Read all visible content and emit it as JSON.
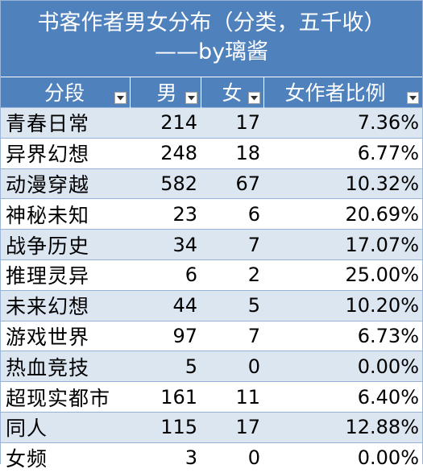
{
  "title": {
    "line1": "书客作者男女分布（分类，五千收）",
    "line2": "——by璃酱"
  },
  "columns": [
    {
      "label": "分段"
    },
    {
      "label": "男"
    },
    {
      "label": "女"
    },
    {
      "label": "女作者比例"
    }
  ],
  "rows": [
    {
      "category": "青春日常",
      "male": "214",
      "female": "17",
      "ratio": "7.36%"
    },
    {
      "category": "异界幻想",
      "male": "248",
      "female": "18",
      "ratio": "6.77%"
    },
    {
      "category": "动漫穿越",
      "male": "582",
      "female": "67",
      "ratio": "10.32%"
    },
    {
      "category": "神秘未知",
      "male": "23",
      "female": "6",
      "ratio": "20.69%"
    },
    {
      "category": "战争历史",
      "male": "34",
      "female": "7",
      "ratio": "17.07%"
    },
    {
      "category": "推理灵异",
      "male": "6",
      "female": "2",
      "ratio": "25.00%"
    },
    {
      "category": "未来幻想",
      "male": "44",
      "female": "5",
      "ratio": "10.20%"
    },
    {
      "category": "游戏世界",
      "male": "97",
      "female": "7",
      "ratio": "6.73%"
    },
    {
      "category": "热血竞技",
      "male": "5",
      "female": "0",
      "ratio": "0.00%"
    },
    {
      "category": "超现实都市",
      "male": "161",
      "female": "11",
      "ratio": "6.40%"
    },
    {
      "category": "同人",
      "male": "115",
      "female": "17",
      "ratio": "12.88%"
    },
    {
      "category": "女频",
      "male": "3",
      "female": "0",
      "ratio": "0.00%"
    }
  ],
  "colors": {
    "header_bg": "#4f81bd",
    "band_bg": "#dce6f1",
    "header_text": "#ffffff"
  },
  "icons": {
    "filter": "dropdown-arrow-icon"
  }
}
